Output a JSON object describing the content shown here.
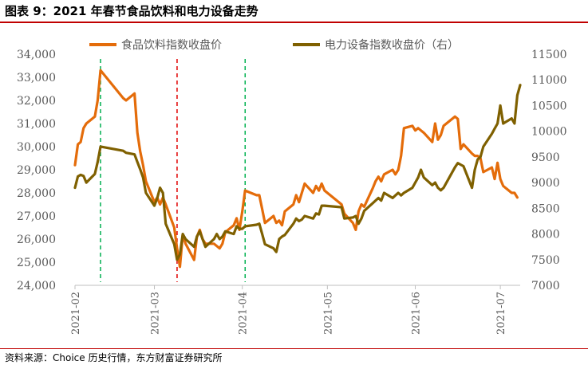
{
  "title": "图表 9：2021 年春节食品饮料和电力设备走势",
  "source": "资料来源：Choice 历史行情，东方财富证券研究所",
  "colors": {
    "food": "#e46c0a",
    "power": "#7f6000",
    "red_marker": "#e00000",
    "green_marker": "#00b050",
    "title_rule": "#c00000"
  },
  "chart_data": {
    "type": "line",
    "legend_position": "top",
    "x_ticks": [
      "2021-02",
      "2021-03",
      "2021-04",
      "2021-05",
      "2021-06",
      "2021-07"
    ],
    "x_tick_dates": [
      "2021-02-01",
      "2021-03-01",
      "2021-04-01",
      "2021-05-01",
      "2021-06-01",
      "2021-07-01"
    ],
    "xlim": [
      "2021-02-01",
      "2021-07-08"
    ],
    "y_left": {
      "lim": [
        24000,
        34000
      ],
      "ticks": [
        "24,000",
        "25,000",
        "26,000",
        "27,000",
        "28,000",
        "29,000",
        "30,000",
        "31,000",
        "32,000",
        "33,000",
        "34,000"
      ]
    },
    "y_right": {
      "lim": [
        7000,
        11500
      ],
      "ticks": [
        "7000",
        "7500",
        "8000",
        "8500",
        "9000",
        "9500",
        "10000",
        "10500",
        "11000",
        "11500"
      ]
    },
    "markers": [
      {
        "date": "2021-02-10",
        "color": "green"
      },
      {
        "date": "2021-03-09",
        "color": "red"
      },
      {
        "date": "2021-04-02",
        "color": "green"
      }
    ],
    "series": [
      {
        "name": "食品饮料指数收盘价",
        "axis": "left",
        "color": "#e46c0a",
        "points": [
          [
            "2021-02-01",
            29200
          ],
          [
            "2021-02-02",
            30100
          ],
          [
            "2021-02-03",
            30200
          ],
          [
            "2021-02-04",
            30800
          ],
          [
            "2021-02-05",
            31000
          ],
          [
            "2021-02-08",
            31300
          ],
          [
            "2021-02-09",
            32000
          ],
          [
            "2021-02-10",
            33300
          ],
          [
            "2021-02-18",
            32100
          ],
          [
            "2021-02-19",
            32000
          ],
          [
            "2021-02-22",
            32300
          ],
          [
            "2021-02-23",
            30600
          ],
          [
            "2021-02-24",
            29800
          ],
          [
            "2021-02-25",
            29200
          ],
          [
            "2021-02-26",
            28500
          ],
          [
            "2021-03-01",
            27600
          ],
          [
            "2021-03-02",
            27800
          ],
          [
            "2021-03-03",
            27500
          ],
          [
            "2021-03-04",
            27800
          ],
          [
            "2021-03-05",
            27500
          ],
          [
            "2021-03-08",
            26500
          ],
          [
            "2021-03-09",
            25600
          ],
          [
            "2021-03-10",
            24800
          ],
          [
            "2021-03-11",
            26200
          ],
          [
            "2021-03-12",
            25800
          ],
          [
            "2021-03-15",
            25100
          ],
          [
            "2021-03-16",
            26100
          ],
          [
            "2021-03-17",
            26400
          ],
          [
            "2021-03-18",
            26000
          ],
          [
            "2021-03-19",
            25800
          ],
          [
            "2021-03-22",
            25800
          ],
          [
            "2021-03-23",
            25700
          ],
          [
            "2021-03-24",
            25600
          ],
          [
            "2021-03-25",
            25800
          ],
          [
            "2021-03-26",
            26300
          ],
          [
            "2021-03-29",
            26600
          ],
          [
            "2021-03-30",
            26900
          ],
          [
            "2021-03-31",
            26400
          ],
          [
            "2021-04-01",
            27200
          ],
          [
            "2021-04-02",
            28100
          ],
          [
            "2021-04-06",
            27900
          ],
          [
            "2021-04-07",
            27900
          ],
          [
            "2021-04-08",
            27300
          ],
          [
            "2021-04-09",
            26700
          ],
          [
            "2021-04-12",
            27000
          ],
          [
            "2021-04-13",
            26700
          ],
          [
            "2021-04-14",
            26800
          ],
          [
            "2021-04-15",
            26600
          ],
          [
            "2021-04-16",
            27200
          ],
          [
            "2021-04-19",
            27500
          ],
          [
            "2021-04-20",
            27900
          ],
          [
            "2021-04-21",
            27600
          ],
          [
            "2021-04-22",
            28000
          ],
          [
            "2021-04-23",
            28400
          ],
          [
            "2021-04-26",
            28000
          ],
          [
            "2021-04-27",
            28300
          ],
          [
            "2021-04-28",
            28100
          ],
          [
            "2021-04-29",
            28400
          ],
          [
            "2021-04-30",
            28100
          ],
          [
            "2021-05-06",
            27500
          ],
          [
            "2021-05-07",
            27100
          ],
          [
            "2021-05-10",
            26700
          ],
          [
            "2021-05-11",
            26400
          ],
          [
            "2021-05-12",
            27200
          ],
          [
            "2021-05-13",
            27500
          ],
          [
            "2021-05-14",
            27400
          ],
          [
            "2021-05-17",
            28200
          ],
          [
            "2021-05-18",
            28500
          ],
          [
            "2021-05-19",
            28700
          ],
          [
            "2021-05-20",
            28500
          ],
          [
            "2021-05-21",
            28800
          ],
          [
            "2021-05-24",
            29000
          ],
          [
            "2021-05-25",
            28800
          ],
          [
            "2021-05-26",
            29000
          ],
          [
            "2021-05-27",
            29600
          ],
          [
            "2021-05-28",
            30800
          ],
          [
            "2021-05-31",
            30900
          ],
          [
            "2021-06-01",
            30700
          ],
          [
            "2021-06-02",
            30800
          ],
          [
            "2021-06-03",
            30700
          ],
          [
            "2021-06-04",
            30600
          ],
          [
            "2021-06-07",
            30200
          ],
          [
            "2021-06-08",
            31000
          ],
          [
            "2021-06-09",
            30300
          ],
          [
            "2021-06-10",
            30500
          ],
          [
            "2021-06-11",
            30900
          ],
          [
            "2021-06-15",
            31300
          ],
          [
            "2021-06-16",
            31200
          ],
          [
            "2021-06-17",
            29900
          ],
          [
            "2021-06-18",
            30100
          ],
          [
            "2021-06-21",
            29700
          ],
          [
            "2021-06-22",
            29600
          ],
          [
            "2021-06-23",
            29600
          ],
          [
            "2021-06-24",
            29500
          ],
          [
            "2021-06-25",
            28900
          ],
          [
            "2021-06-28",
            29100
          ],
          [
            "2021-06-29",
            28600
          ],
          [
            "2021-06-30",
            29300
          ],
          [
            "2021-07-01",
            28600
          ],
          [
            "2021-07-02",
            28300
          ],
          [
            "2021-07-05",
            28000
          ],
          [
            "2021-07-06",
            28000
          ],
          [
            "2021-07-07",
            27800
          ]
        ]
      },
      {
        "name": "电力设备指数收盘价（右）",
        "axis": "right",
        "color": "#7f6000",
        "points": [
          [
            "2021-02-01",
            8900
          ],
          [
            "2021-02-02",
            9120
          ],
          [
            "2021-02-03",
            9150
          ],
          [
            "2021-02-04",
            9130
          ],
          [
            "2021-02-05",
            9000
          ],
          [
            "2021-02-08",
            9170
          ],
          [
            "2021-02-09",
            9400
          ],
          [
            "2021-02-10",
            9700
          ],
          [
            "2021-02-18",
            9620
          ],
          [
            "2021-02-19",
            9580
          ],
          [
            "2021-02-22",
            9550
          ],
          [
            "2021-02-23",
            9400
          ],
          [
            "2021-02-24",
            9260
          ],
          [
            "2021-02-25",
            9100
          ],
          [
            "2021-02-26",
            8800
          ],
          [
            "2021-03-01",
            8550
          ],
          [
            "2021-03-02",
            8700
          ],
          [
            "2021-03-03",
            8900
          ],
          [
            "2021-03-04",
            8800
          ],
          [
            "2021-03-05",
            8200
          ],
          [
            "2021-03-08",
            7800
          ],
          [
            "2021-03-09",
            7500
          ],
          [
            "2021-03-10",
            7600
          ],
          [
            "2021-03-11",
            8000
          ],
          [
            "2021-03-12",
            7900
          ],
          [
            "2021-03-15",
            7750
          ],
          [
            "2021-03-16",
            7950
          ],
          [
            "2021-03-17",
            8050
          ],
          [
            "2021-03-18",
            7900
          ],
          [
            "2021-03-19",
            7750
          ],
          [
            "2021-03-22",
            7900
          ],
          [
            "2021-03-23",
            8000
          ],
          [
            "2021-03-24",
            7900
          ],
          [
            "2021-03-25",
            7950
          ],
          [
            "2021-03-26",
            8050
          ],
          [
            "2021-03-29",
            8000
          ],
          [
            "2021-03-30",
            8150
          ],
          [
            "2021-03-31",
            8100
          ],
          [
            "2021-04-01",
            8100
          ],
          [
            "2021-04-02",
            8150
          ],
          [
            "2021-04-06",
            8180
          ],
          [
            "2021-04-07",
            8200
          ],
          [
            "2021-04-08",
            8000
          ],
          [
            "2021-04-09",
            7800
          ],
          [
            "2021-04-12",
            7720
          ],
          [
            "2021-04-13",
            7650
          ],
          [
            "2021-04-14",
            7900
          ],
          [
            "2021-04-15",
            7950
          ],
          [
            "2021-04-16",
            7980
          ],
          [
            "2021-04-19",
            8200
          ],
          [
            "2021-04-20",
            8300
          ],
          [
            "2021-04-21",
            8250
          ],
          [
            "2021-04-22",
            8280
          ],
          [
            "2021-04-23",
            8350
          ],
          [
            "2021-04-26",
            8300
          ],
          [
            "2021-04-27",
            8400
          ],
          [
            "2021-04-28",
            8380
          ],
          [
            "2021-04-29",
            8550
          ],
          [
            "2021-04-30",
            8550
          ],
          [
            "2021-05-06",
            8520
          ],
          [
            "2021-05-07",
            8300
          ],
          [
            "2021-05-10",
            8320
          ],
          [
            "2021-05-11",
            8350
          ],
          [
            "2021-05-12",
            8200
          ],
          [
            "2021-05-13",
            8300
          ],
          [
            "2021-05-14",
            8450
          ],
          [
            "2021-05-17",
            8600
          ],
          [
            "2021-05-18",
            8650
          ],
          [
            "2021-05-19",
            8700
          ],
          [
            "2021-05-20",
            8650
          ],
          [
            "2021-05-21",
            8800
          ],
          [
            "2021-05-24",
            8700
          ],
          [
            "2021-05-25",
            8750
          ],
          [
            "2021-05-26",
            8800
          ],
          [
            "2021-05-27",
            8750
          ],
          [
            "2021-05-28",
            8800
          ],
          [
            "2021-05-31",
            8900
          ],
          [
            "2021-06-01",
            9000
          ],
          [
            "2021-06-02",
            9100
          ],
          [
            "2021-06-03",
            9250
          ],
          [
            "2021-06-04",
            9100
          ],
          [
            "2021-06-07",
            8950
          ],
          [
            "2021-06-08",
            9000
          ],
          [
            "2021-06-09",
            8900
          ],
          [
            "2021-06-10",
            8850
          ],
          [
            "2021-06-11",
            8900
          ],
          [
            "2021-06-15",
            9300
          ],
          [
            "2021-06-16",
            9380
          ],
          [
            "2021-06-17",
            9350
          ],
          [
            "2021-06-18",
            9320
          ],
          [
            "2021-06-21",
            8900
          ],
          [
            "2021-06-22",
            9250
          ],
          [
            "2021-06-23",
            9450
          ],
          [
            "2021-06-24",
            9500
          ],
          [
            "2021-06-25",
            9700
          ],
          [
            "2021-06-28",
            9950
          ],
          [
            "2021-06-29",
            10050
          ],
          [
            "2021-06-30",
            10150
          ],
          [
            "2021-07-01",
            10500
          ],
          [
            "2021-07-02",
            10150
          ],
          [
            "2021-07-05",
            10250
          ],
          [
            "2021-07-06",
            10150
          ],
          [
            "2021-07-07",
            10700
          ],
          [
            "2021-07-08",
            10900
          ]
        ]
      }
    ]
  }
}
